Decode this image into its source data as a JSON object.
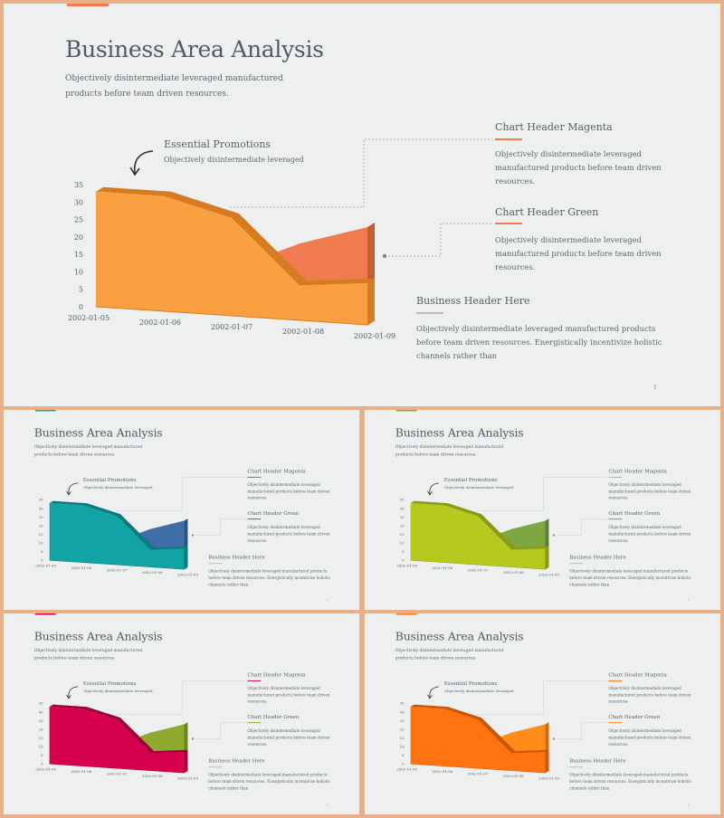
{
  "slide": {
    "title": "Business Area Analysis",
    "subtitle": "Objectively disintermediate leveraged manufactured products before team driven resources.",
    "annotation": {
      "title": "Essential Promotions",
      "text": "Objectively disintermediate leveraged"
    },
    "headers": [
      {
        "title": "Chart Header Magenta",
        "text": "Objectively disintermediate leveraged manufactured products before team  driven resources."
      },
      {
        "title": "Chart Header Green",
        "text": "Objectively disintermediate leveraged manufactured products before team  driven resources."
      },
      {
        "title": "Business Header Here",
        "text": "Objectively disintermediate leveraged manufactured products before team driven resources. Energistically incentivize holistic channels rather than"
      }
    ],
    "page_number": "1"
  },
  "chart_data": {
    "type": "area",
    "title": "",
    "xlabel": "",
    "ylabel": "",
    "categories": [
      "2002-01-05",
      "2002-01-06",
      "2002-01-07",
      "2002-01-08",
      "2002-01-09"
    ],
    "y_ticks": [
      "35",
      "30",
      "25",
      "20",
      "15",
      "10",
      "5",
      "0"
    ],
    "ylim": [
      0,
      35
    ],
    "series": [
      {
        "values": [
          33,
          33,
          28,
          10,
          12
        ]
      },
      {
        "values": [
          0,
          0,
          0,
          22,
          28
        ]
      }
    ]
  },
  "themes": [
    {
      "front": "#fba040",
      "side": "#d57c22",
      "second": "#ef7b4f",
      "second_side": "#c75c35",
      "accent1": "#ef7b4f",
      "accent2": "#ef7b4f",
      "topbar": "#ef7b4f"
    },
    {
      "front": "#12a3a5",
      "side": "#0b7c7e",
      "second": "#3f6ea8",
      "second_side": "#2c5285",
      "accent1": "#12a3a5",
      "accent2": "#3f6ea8",
      "topbar": "#12a3a5"
    },
    {
      "front": "#b5c91e",
      "side": "#8a9c12",
      "second": "#7ea642",
      "second_side": "#5d8030",
      "accent1": "#b5c91e",
      "accent2": "#7ea642",
      "topbar": "#7ea642"
    },
    {
      "front": "#d6004c",
      "side": "#a1003a",
      "second": "#8faa30",
      "second_side": "#6b8520",
      "accent1": "#d6004c",
      "accent2": "#8faa30",
      "topbar": "#d6004c"
    },
    {
      "front": "#ff7310",
      "side": "#cc5605",
      "second": "#ff8c1a",
      "second_side": "#d06a0a",
      "accent1": "#ff7310",
      "accent2": "#ff8c1a",
      "topbar": "#ff7310"
    }
  ]
}
